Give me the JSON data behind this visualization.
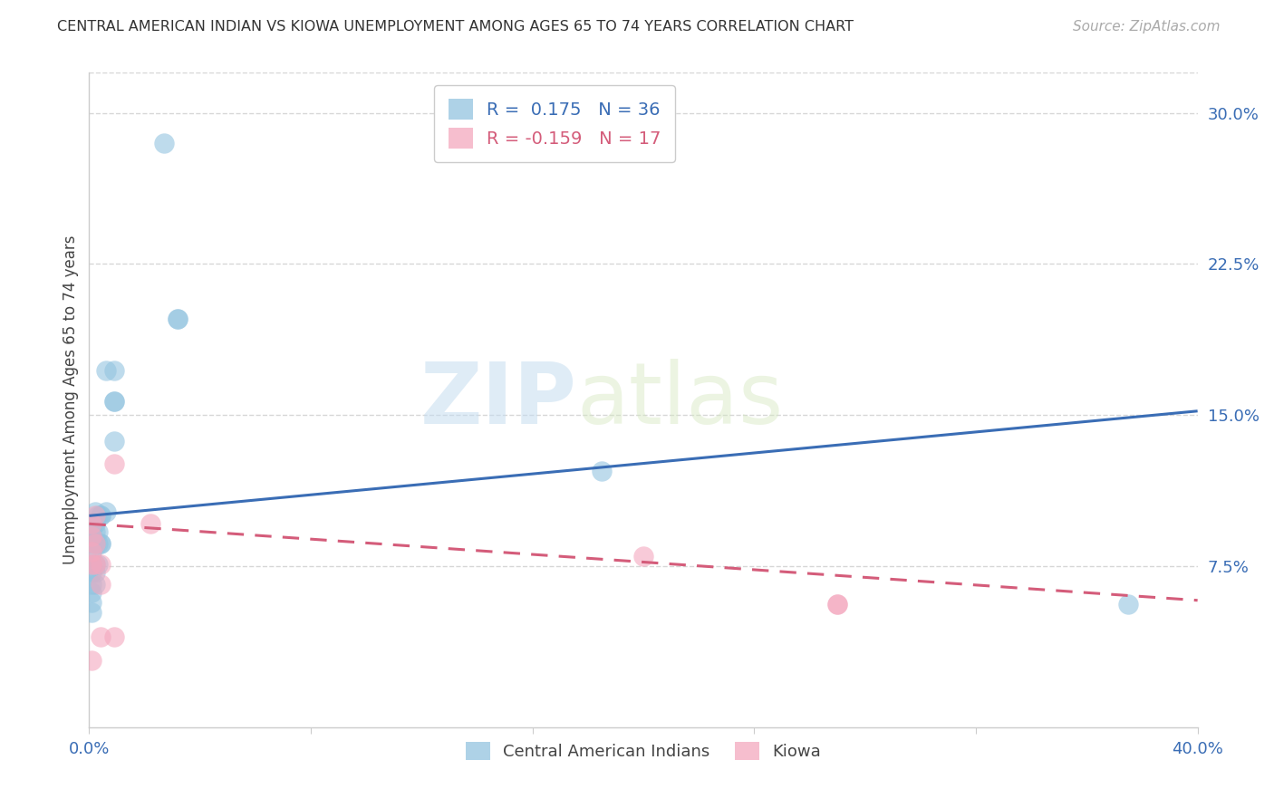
{
  "title": "CENTRAL AMERICAN INDIAN VS KIOWA UNEMPLOYMENT AMONG AGES 65 TO 74 YEARS CORRELATION CHART",
  "source": "Source: ZipAtlas.com",
  "ylabel": "Unemployment Among Ages 65 to 74 years",
  "legend_R1": "0.175",
  "legend_N1": "36",
  "legend_R2": "-0.159",
  "legend_N2": "17",
  "blue_color": "#93c4e0",
  "pink_color": "#f4a8be",
  "blue_line_color": "#3a6db5",
  "pink_line_color": "#d45c7a",
  "watermark_zip": "ZIP",
  "watermark_atlas": "atlas",
  "xlim": [
    0.0,
    0.4
  ],
  "ylim": [
    -0.005,
    0.32
  ],
  "yticks": [
    0.075,
    0.15,
    0.225,
    0.3
  ],
  "ytick_labels": [
    "7.5%",
    "15.0%",
    "22.5%",
    "30.0%"
  ],
  "grid_color": "#cccccc",
  "background_color": "#ffffff",
  "blue_points_x": [
    0.027,
    0.032,
    0.032,
    0.009,
    0.009,
    0.009,
    0.009,
    0.006,
    0.006,
    0.004,
    0.004,
    0.004,
    0.004,
    0.003,
    0.003,
    0.003,
    0.003,
    0.002,
    0.002,
    0.002,
    0.002,
    0.002,
    0.002,
    0.002,
    0.001,
    0.001,
    0.001,
    0.001,
    0.001,
    0.001,
    0.001,
    0.001,
    0.001,
    0.001,
    0.185,
    0.375
  ],
  "blue_points_y": [
    0.285,
    0.198,
    0.198,
    0.172,
    0.157,
    0.157,
    0.137,
    0.172,
    0.102,
    0.1,
    0.1,
    0.086,
    0.086,
    0.1,
    0.092,
    0.086,
    0.076,
    0.102,
    0.096,
    0.092,
    0.086,
    0.076,
    0.072,
    0.066,
    0.096,
    0.092,
    0.086,
    0.082,
    0.076,
    0.072,
    0.066,
    0.062,
    0.057,
    0.052,
    0.122,
    0.056
  ],
  "pink_points_x": [
    0.009,
    0.009,
    0.004,
    0.004,
    0.004,
    0.002,
    0.002,
    0.002,
    0.001,
    0.001,
    0.001,
    0.001,
    0.001,
    0.2,
    0.27,
    0.27,
    0.022
  ],
  "pink_points_y": [
    0.126,
    0.04,
    0.076,
    0.066,
    0.04,
    0.1,
    0.086,
    0.076,
    0.096,
    0.09,
    0.082,
    0.076,
    0.028,
    0.08,
    0.056,
    0.056,
    0.096
  ],
  "blue_line_x": [
    0.0,
    0.4
  ],
  "blue_line_y": [
    0.1,
    0.152
  ],
  "pink_line_x": [
    0.0,
    0.4
  ],
  "pink_line_y": [
    0.096,
    0.058
  ]
}
